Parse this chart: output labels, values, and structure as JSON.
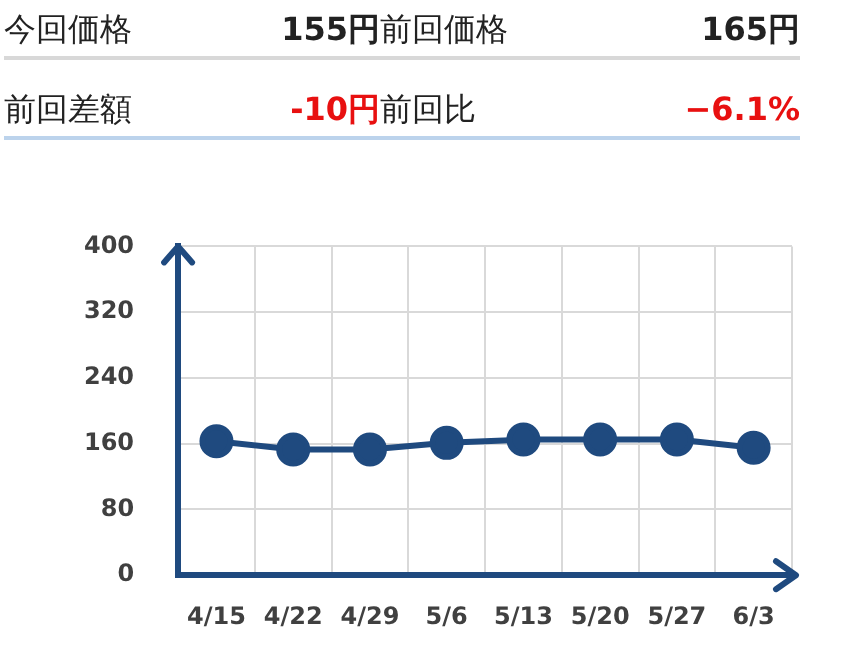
{
  "chart_data": [
    {
      "type": "other",
      "annotations": [
        "今回価格",
        "155円",
        "前回価格",
        "165円",
        "前回差額",
        "-10円",
        "前回比",
        "−6.1%"
      ]
    },
    {
      "type": "line",
      "categories": [
        "4/15",
        "4/22",
        "4/29",
        "5/6",
        "5/13",
        "5/20",
        "5/27",
        "6/3"
      ],
      "values": [
        163,
        153,
        153,
        161,
        165,
        165,
        165,
        155
      ],
      "color": "#1f4a7f",
      "ylim": [
        0,
        400
      ],
      "yticks": [
        0,
        80,
        160,
        240,
        320,
        400
      ],
      "grid": true,
      "marker": "circle"
    }
  ]
}
